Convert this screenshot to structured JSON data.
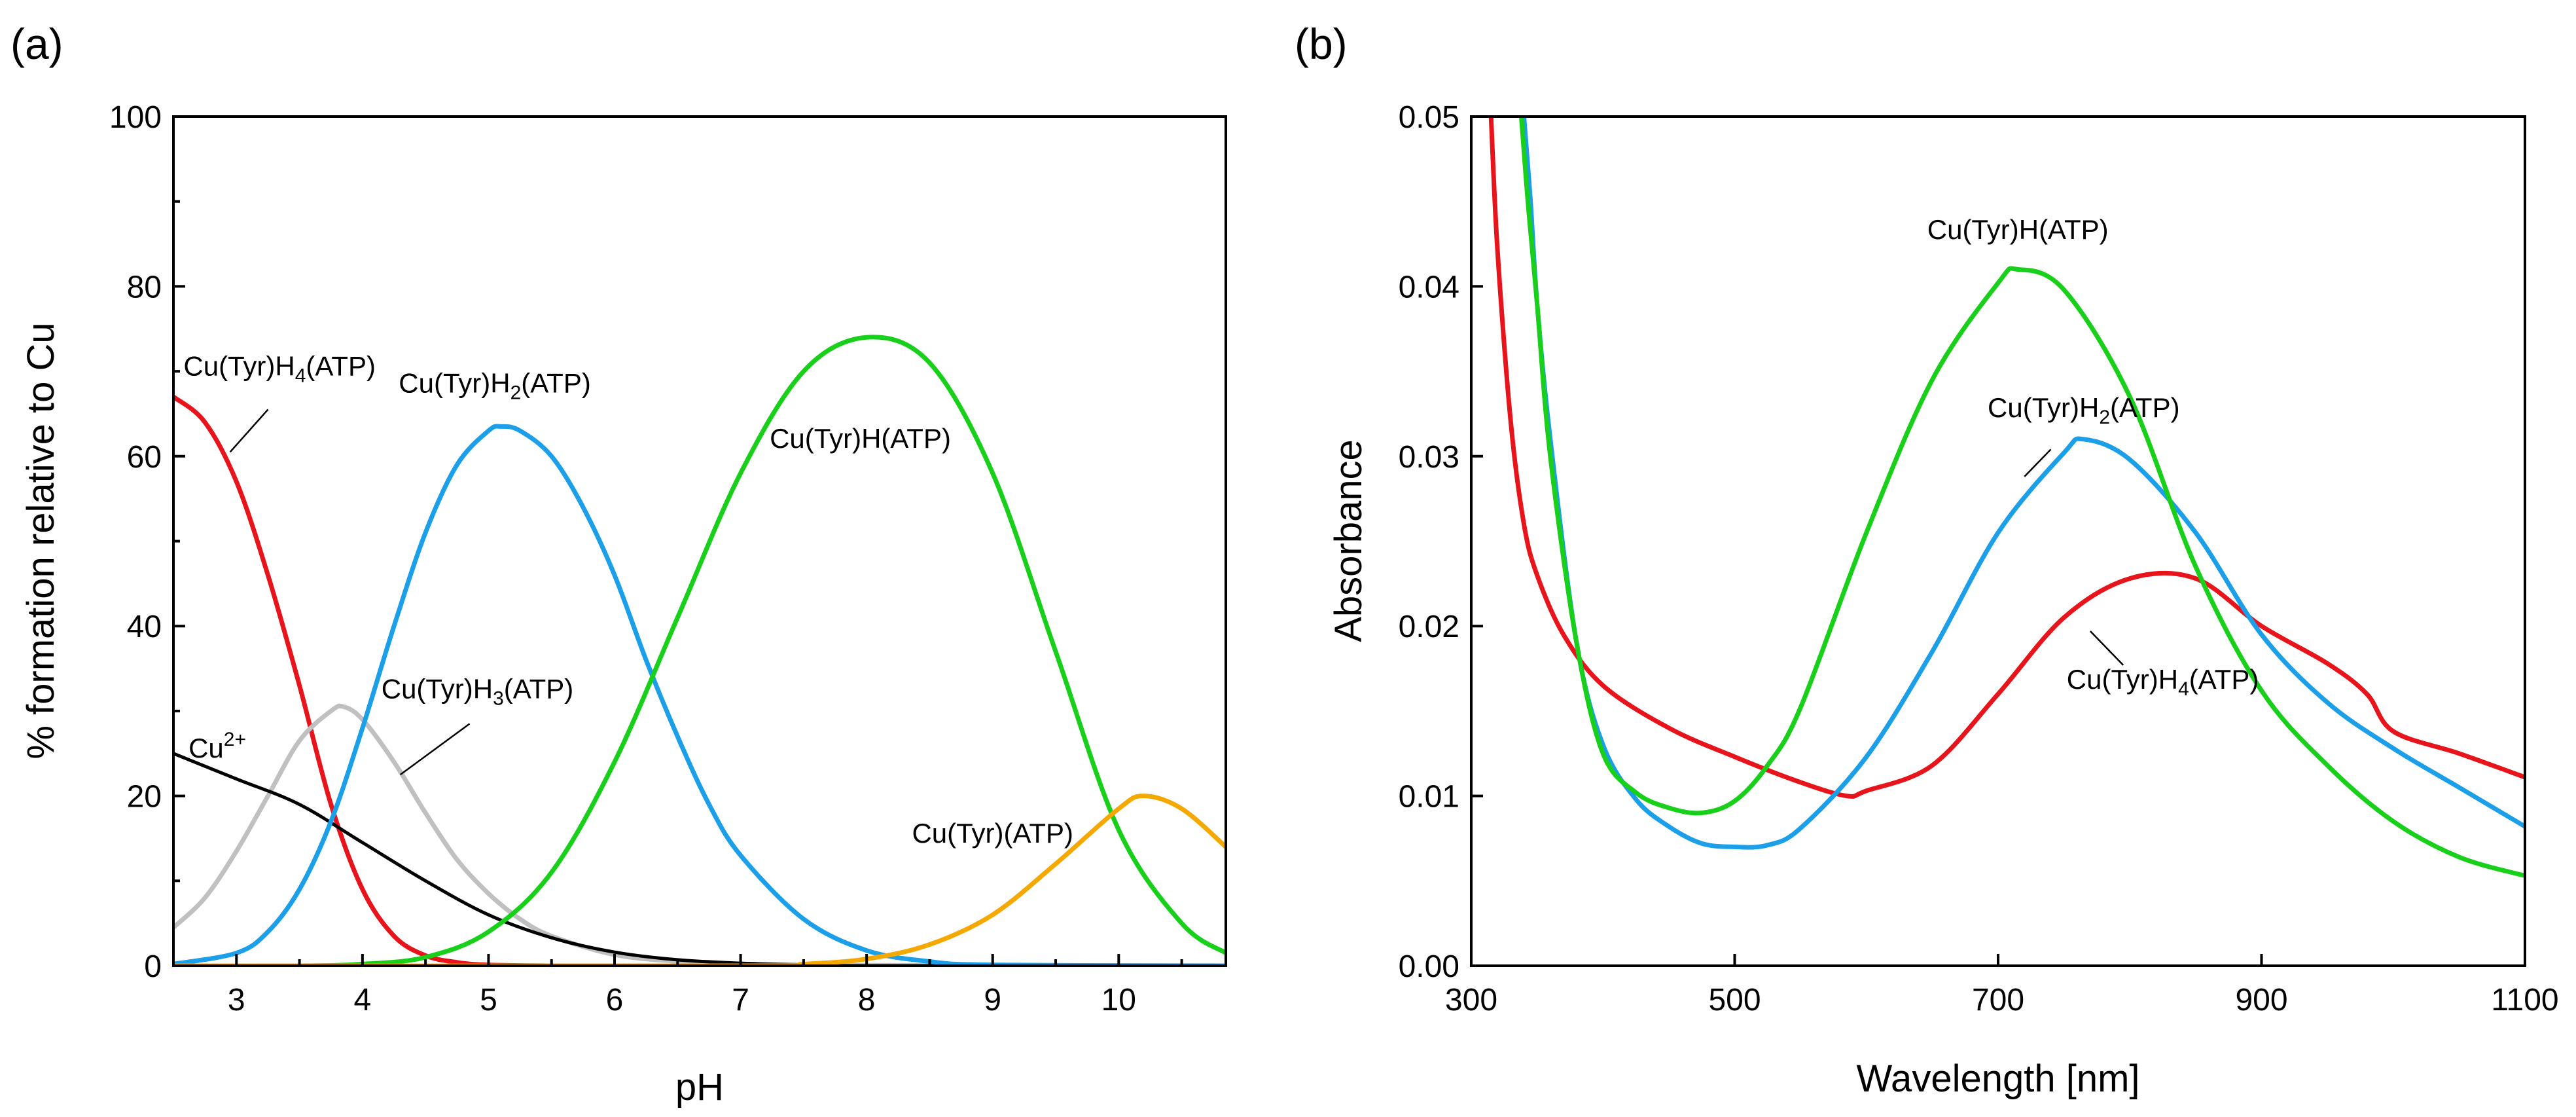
{
  "colors": {
    "red": "#e8141b",
    "blue": "#1a9fe8",
    "green": "#18cf1a",
    "gray": "#c0c0c0",
    "black": "#000000",
    "orange": "#f5a900"
  },
  "chart_data": [
    {
      "panel": "(a)",
      "type": "line",
      "title": "",
      "xlabel": "pH",
      "ylabel": "% formation relative to Cu",
      "xlim": [
        2.5,
        10.85
      ],
      "ylim": [
        0,
        100
      ],
      "xticks": [
        3,
        4,
        5,
        6,
        7,
        8,
        9,
        10
      ],
      "yticks": [
        0,
        20,
        40,
        60,
        80,
        100
      ],
      "grid": false,
      "series": [
        {
          "name": "Cu(Tyr)H4(ATP)",
          "label_main": "Cu(Tyr)H",
          "label_sub": "4",
          "label_tail": "(ATP)",
          "color": "#e8141b",
          "x": [
            2.5,
            2.75,
            3.0,
            3.25,
            3.5,
            3.75,
            4.0,
            4.25,
            4.5,
            4.75,
            5.0,
            5.5,
            6.0,
            7.0,
            10.85
          ],
          "y": [
            67,
            64,
            57,
            46,
            33,
            19,
            9,
            3.5,
            1.2,
            0.4,
            0.1,
            0,
            0,
            0,
            0
          ]
        },
        {
          "name": "Cu(Tyr)H3(ATP)",
          "label_main": "Cu(Tyr)H",
          "label_sub": "3",
          "label_tail": "(ATP)",
          "color": "#c0c0c0",
          "x": [
            2.5,
            2.75,
            3.0,
            3.25,
            3.5,
            3.75,
            3.85,
            4.0,
            4.25,
            4.5,
            4.75,
            5.0,
            5.25,
            5.5,
            6.0,
            6.5,
            7.0,
            10.85
          ],
          "y": [
            4.5,
            8,
            13.5,
            20,
            26.5,
            30,
            30.5,
            29,
            24,
            18,
            12.5,
            8.5,
            5.5,
            3.5,
            1.3,
            0.5,
            0.1,
            0
          ]
        },
        {
          "name": "Cu2+",
          "label_main": "Cu",
          "label_sup": "2+",
          "color": "#000000",
          "x": [
            2.5,
            3.0,
            3.5,
            4.0,
            4.5,
            5.0,
            5.5,
            6.0,
            6.5,
            7.0,
            7.5,
            8.0,
            10.85
          ],
          "y": [
            25,
            22,
            19,
            14.5,
            10,
            6,
            3.3,
            1.6,
            0.7,
            0.3,
            0.1,
            0,
            0
          ]
        },
        {
          "name": "Cu(Tyr)H2(ATP)",
          "label_main": "Cu(Tyr)H",
          "label_sub": "2",
          "label_tail": "(ATP)",
          "color": "#1a9fe8",
          "x": [
            2.5,
            3.0,
            3.25,
            3.5,
            3.75,
            4.0,
            4.25,
            4.5,
            4.75,
            5.0,
            5.1,
            5.25,
            5.5,
            5.75,
            6.0,
            6.25,
            6.5,
            6.75,
            7.0,
            7.5,
            8.0,
            8.5,
            9.0,
            10.85
          ],
          "y": [
            0.2,
            1.5,
            4,
            9,
            17,
            28,
            40,
            51,
            59,
            63,
            63.5,
            63,
            60,
            54,
            46,
            36,
            27,
            19,
            13,
            5.5,
            1.8,
            0.5,
            0.1,
            0
          ]
        },
        {
          "name": "Cu(Tyr)H(ATP)",
          "label_main": "Cu(Tyr)H(ATP)",
          "color": "#18cf1a",
          "x": [
            2.5,
            3.5,
            4.0,
            4.5,
            5.0,
            5.5,
            6.0,
            6.5,
            7.0,
            7.5,
            8.0,
            8.5,
            9.0,
            9.5,
            10.0,
            10.5,
            10.85
          ],
          "y": [
            0,
            0,
            0.2,
            1,
            4,
            11,
            24,
            41,
            58,
            70,
            74,
            71,
            58,
            37,
            16,
            5,
            1.5
          ]
        },
        {
          "name": "Cu(Tyr)(ATP)",
          "label_main": "Cu(Tyr)(ATP)",
          "color": "#f5a900",
          "x": [
            2.5,
            7.0,
            7.5,
            8.0,
            8.5,
            9.0,
            9.5,
            10.0,
            10.2,
            10.5,
            10.85
          ],
          "y": [
            0,
            0,
            0.2,
            0.8,
            2.5,
            6,
            12,
            18.5,
            20,
            18.5,
            14
          ]
        }
      ]
    },
    {
      "panel": "(b)",
      "type": "line",
      "title": "",
      "xlabel": "Wavelength [nm]",
      "ylabel": "Absorbance",
      "xlim": [
        300,
        1100
      ],
      "ylim": [
        0.0,
        0.05
      ],
      "xticks": [
        300,
        500,
        700,
        900,
        1100
      ],
      "yticks": [
        "0.00",
        "0.01",
        "0.02",
        "0.03",
        "0.04",
        "0.05"
      ],
      "grid": false,
      "series": [
        {
          "name": "Cu(Tyr)H4(ATP)",
          "label_main": "Cu(Tyr)H",
          "label_sub": "4",
          "label_tail": "(ATP)",
          "color": "#e8141b",
          "x": [
            315,
            320,
            330,
            340,
            350,
            370,
            400,
            450,
            500,
            550,
            585,
            600,
            650,
            700,
            750,
            800,
            850,
            900,
            950,
            980,
            1000,
            1050,
            1100
          ],
          "y": [
            0.05,
            0.042,
            0.032,
            0.026,
            0.023,
            0.0195,
            0.0165,
            0.014,
            0.0123,
            0.0108,
            0.01,
            0.0103,
            0.0118,
            0.016,
            0.0205,
            0.0228,
            0.0228,
            0.02,
            0.0178,
            0.016,
            0.0138,
            0.0125,
            0.0111
          ]
        },
        {
          "name": "Cu(Tyr)H2(ATP)",
          "label_main": "Cu(Tyr)H",
          "label_sub": "2",
          "label_tail": "(ATP)",
          "color": "#1a9fe8",
          "x": [
            340,
            345,
            350,
            360,
            380,
            400,
            425,
            450,
            475,
            500,
            525,
            550,
            600,
            650,
            700,
            750,
            765,
            800,
            850,
            900,
            950,
            1000,
            1050,
            1100
          ],
          "y": [
            0.05,
            0.045,
            0.039,
            0.031,
            0.019,
            0.013,
            0.0098,
            0.0082,
            0.0072,
            0.007,
            0.0071,
            0.0081,
            0.0123,
            0.0185,
            0.0255,
            0.0302,
            0.031,
            0.0298,
            0.0255,
            0.0195,
            0.0155,
            0.0128,
            0.0105,
            0.0082
          ]
        },
        {
          "name": "Cu(Tyr)H(ATP)",
          "label_main": "Cu(Tyr)H(ATP)",
          "color": "#18cf1a",
          "x": [
            338,
            343,
            350,
            360,
            380,
            400,
            425,
            450,
            475,
            500,
            525,
            550,
            600,
            650,
            700,
            715,
            750,
            800,
            850,
            900,
            950,
            1000,
            1050,
            1100
          ],
          "y": [
            0.05,
            0.045,
            0.039,
            0.03,
            0.019,
            0.0125,
            0.0102,
            0.0093,
            0.009,
            0.0097,
            0.0118,
            0.0152,
            0.0255,
            0.0345,
            0.0402,
            0.041,
            0.0398,
            0.0335,
            0.0235,
            0.0162,
            0.0118,
            0.0085,
            0.0064,
            0.0053
          ]
        }
      ]
    }
  ]
}
